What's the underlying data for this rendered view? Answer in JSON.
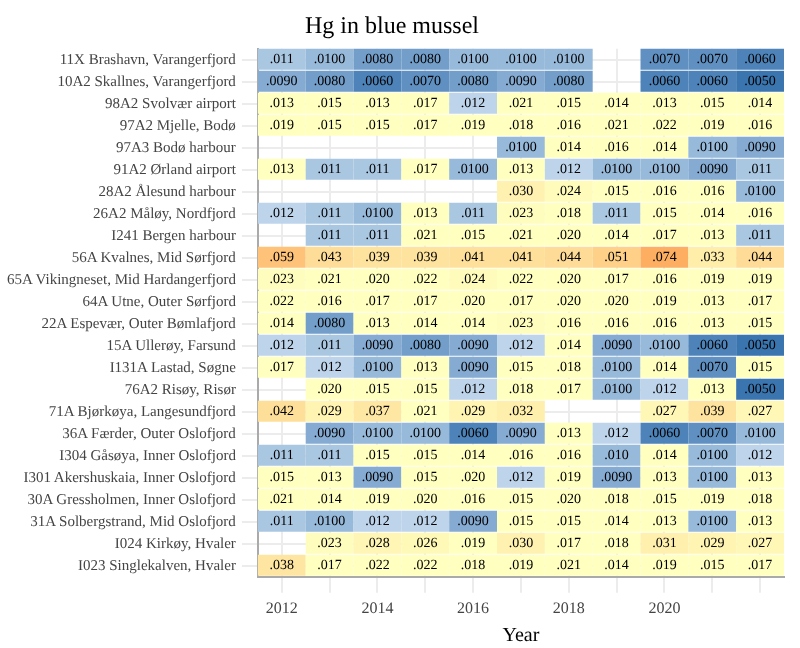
{
  "chart_data": {
    "type": "heatmap",
    "title": "Hg in blue mussel",
    "xlabel": "Year",
    "grid": true,
    "categories": [
      "2012",
      null,
      "2014",
      null,
      "2016",
      null,
      "2018",
      null,
      "2020",
      null,
      null
    ],
    "y_categories": [
      "11X Brashavn, Varangerfjord",
      "10A2 Skallnes, Varangerfjord",
      "98A2 Svolvær airport",
      "97A2 Mjelle, Bodø",
      "97A3 Bodø harbour",
      "91A2 Ørland airport",
      "28A2 Ålesund harbour",
      "26A2 Måløy, Nordfjord",
      "I241 Bergen harbour",
      "56A Kvalnes, Mid Sørfjord",
      "65A Vikingneset, Mid Hardangerfjord",
      "64A Utne, Outer Sørfjord",
      "22A Espevær, Outer Bømlafjord",
      "15A Ullerøy, Farsund",
      "I131A Lastad, Søgne",
      "76A2 Risøy, Risør",
      "71A Bjørkøya, Langesundfjord",
      "36A Færder, Outer Oslofjord",
      "I304 Gåsøya, Inner Oslofjord",
      "I301 Akershuskaia, Inner Oslofjord",
      "30A Gressholmen, Inner Oslofjord",
      "31A Solbergstrand, Mid Oslofjord",
      "I024 Kirkøy, Hvaler",
      "I023 Singlekalven, Hvaler"
    ],
    "cells": [
      [
        0.011,
        0.01,
        0.008,
        0.008,
        0.01,
        0.01,
        0.01,
        null,
        0.007,
        0.007,
        0.006
      ],
      [
        0.009,
        0.008,
        0.006,
        0.007,
        0.008,
        0.009,
        0.008,
        null,
        0.006,
        0.006,
        0.005
      ],
      [
        0.013,
        0.015,
        0.013,
        0.017,
        0.012,
        0.021,
        0.015,
        0.014,
        0.013,
        0.015,
        0.014
      ],
      [
        0.019,
        0.015,
        0.015,
        0.017,
        0.019,
        0.018,
        0.016,
        0.021,
        0.022,
        0.019,
        0.016
      ],
      [
        null,
        null,
        null,
        null,
        null,
        0.01,
        0.014,
        0.016,
        0.014,
        0.01,
        0.009
      ],
      [
        0.013,
        0.011,
        0.011,
        0.017,
        0.01,
        0.013,
        0.012,
        0.01,
        0.01,
        0.009,
        0.011
      ],
      [
        null,
        null,
        null,
        null,
        null,
        0.03,
        0.024,
        0.015,
        0.016,
        0.016,
        0.01
      ],
      [
        0.012,
        0.011,
        0.01,
        0.013,
        0.011,
        0.023,
        0.018,
        0.011,
        0.015,
        0.014,
        0.016
      ],
      [
        null,
        0.011,
        0.011,
        0.021,
        0.015,
        0.021,
        0.02,
        0.014,
        0.017,
        0.013,
        0.011
      ],
      [
        0.059,
        0.043,
        0.039,
        0.039,
        0.041,
        0.041,
        0.044,
        0.051,
        0.074,
        0.033,
        0.044
      ],
      [
        0.023,
        0.021,
        0.02,
        0.022,
        0.024,
        0.022,
        0.02,
        0.017,
        0.016,
        0.019,
        0.019
      ],
      [
        0.022,
        0.016,
        0.017,
        0.017,
        0.02,
        0.017,
        0.02,
        0.02,
        0.019,
        0.013,
        0.017
      ],
      [
        0.014,
        0.008,
        0.013,
        0.014,
        0.014,
        0.023,
        0.016,
        0.016,
        0.016,
        0.013,
        0.015
      ],
      [
        0.012,
        0.011,
        0.009,
        0.008,
        0.009,
        0.012,
        0.014,
        0.009,
        0.01,
        0.006,
        0.005
      ],
      [
        0.017,
        0.012,
        0.01,
        0.013,
        0.009,
        0.015,
        0.018,
        0.01,
        0.014,
        0.007,
        0.015
      ],
      [
        null,
        0.02,
        0.015,
        0.015,
        0.012,
        0.018,
        0.017,
        0.01,
        0.012,
        0.013,
        0.005
      ],
      [
        0.042,
        0.029,
        0.037,
        0.021,
        0.029,
        0.032,
        null,
        null,
        0.027,
        0.039,
        0.027
      ],
      [
        null,
        0.009,
        0.01,
        0.01,
        0.006,
        0.009,
        0.013,
        0.012,
        0.006,
        0.007,
        0.01
      ],
      [
        0.011,
        0.011,
        0.015,
        0.015,
        0.014,
        0.016,
        0.016,
        0.01,
        0.014,
        0.01,
        0.012
      ],
      [
        0.015,
        0.013,
        0.009,
        0.015,
        0.02,
        0.012,
        0.019,
        0.009,
        0.013,
        0.01,
        0.013
      ],
      [
        0.021,
        0.014,
        0.019,
        0.02,
        0.016,
        0.015,
        0.02,
        0.018,
        0.015,
        0.019,
        0.018
      ],
      [
        0.011,
        0.01,
        0.012,
        0.012,
        0.009,
        0.015,
        0.015,
        0.014,
        0.013,
        0.01,
        0.013
      ],
      [
        null,
        0.023,
        0.028,
        0.026,
        0.019,
        0.03,
        0.017,
        0.018,
        0.031,
        0.029,
        0.027
      ],
      [
        0.038,
        0.017,
        0.022,
        0.022,
        0.018,
        0.019,
        0.021,
        0.014,
        0.019,
        0.015,
        0.017
      ]
    ],
    "cell_labels": [
      [
        ".011",
        ".0100",
        ".0080",
        ".0080",
        ".0100",
        ".0100",
        ".0100",
        null,
        ".0070",
        ".0070",
        ".0060"
      ],
      [
        ".0090",
        ".0080",
        ".0060",
        ".0070",
        ".0080",
        ".0090",
        ".0080",
        null,
        ".0060",
        ".0060",
        ".0050"
      ],
      [
        ".013",
        ".015",
        ".013",
        ".017",
        ".012",
        ".021",
        ".015",
        ".014",
        ".013",
        ".015",
        ".014"
      ],
      [
        ".019",
        ".015",
        ".015",
        ".017",
        ".019",
        ".018",
        ".016",
        ".021",
        ".022",
        ".019",
        ".016"
      ],
      [
        null,
        null,
        null,
        null,
        null,
        ".0100",
        ".014",
        ".016",
        ".014",
        ".0100",
        ".0090"
      ],
      [
        ".013",
        ".011",
        ".011",
        ".017",
        ".0100",
        ".013",
        ".012",
        ".0100",
        ".0100",
        ".0090",
        ".011"
      ],
      [
        null,
        null,
        null,
        null,
        null,
        ".030",
        ".024",
        ".015",
        ".016",
        ".016",
        ".0100"
      ],
      [
        ".012",
        ".011",
        ".0100",
        ".013",
        ".011",
        ".023",
        ".018",
        ".011",
        ".015",
        ".014",
        ".016"
      ],
      [
        null,
        ".011",
        ".011",
        ".021",
        ".015",
        ".021",
        ".020",
        ".014",
        ".017",
        ".013",
        ".011"
      ],
      [
        ".059",
        ".043",
        ".039",
        ".039",
        ".041",
        ".041",
        ".044",
        ".051",
        ".074",
        ".033",
        ".044"
      ],
      [
        ".023",
        ".021",
        ".020",
        ".022",
        ".024",
        ".022",
        ".020",
        ".017",
        ".016",
        ".019",
        ".019"
      ],
      [
        ".022",
        ".016",
        ".017",
        ".017",
        ".020",
        ".017",
        ".020",
        ".020",
        ".019",
        ".013",
        ".017"
      ],
      [
        ".014",
        ".0080",
        ".013",
        ".014",
        ".014",
        ".023",
        ".016",
        ".016",
        ".016",
        ".013",
        ".015"
      ],
      [
        ".012",
        ".011",
        ".0090",
        ".0080",
        ".0090",
        ".012",
        ".014",
        ".0090",
        ".0100",
        ".0060",
        ".0050"
      ],
      [
        ".017",
        ".012",
        ".0100",
        ".013",
        ".0090",
        ".015",
        ".018",
        ".0100",
        ".014",
        ".0070",
        ".015"
      ],
      [
        null,
        ".020",
        ".015",
        ".015",
        ".012",
        ".018",
        ".017",
        ".0100",
        ".012",
        ".013",
        ".0050"
      ],
      [
        ".042",
        ".029",
        ".037",
        ".021",
        ".029",
        ".032",
        null,
        null,
        ".027",
        ".039",
        ".027"
      ],
      [
        null,
        ".0090",
        ".0100",
        ".0100",
        ".0060",
        ".0090",
        ".013",
        ".012",
        ".0060",
        ".0070",
        ".0100"
      ],
      [
        ".011",
        ".011",
        ".015",
        ".015",
        ".014",
        ".016",
        ".016",
        ".010",
        ".014",
        ".0100",
        ".012"
      ],
      [
        ".015",
        ".013",
        ".0090",
        ".015",
        ".020",
        ".012",
        ".019",
        ".0090",
        ".013",
        ".0100",
        ".013"
      ],
      [
        ".021",
        ".014",
        ".019",
        ".020",
        ".016",
        ".015",
        ".020",
        ".018",
        ".015",
        ".019",
        ".018"
      ],
      [
        ".011",
        ".0100",
        ".012",
        ".012",
        ".0090",
        ".015",
        ".015",
        ".014",
        ".013",
        ".0100",
        ".013"
      ],
      [
        null,
        ".023",
        ".028",
        ".026",
        ".019",
        ".030",
        ".017",
        ".018",
        ".031",
        ".029",
        ".027"
      ],
      [
        ".038",
        ".017",
        ".022",
        ".022",
        ".018",
        ".019",
        ".021",
        ".014",
        ".019",
        ".015",
        ".017"
      ]
    ]
  }
}
